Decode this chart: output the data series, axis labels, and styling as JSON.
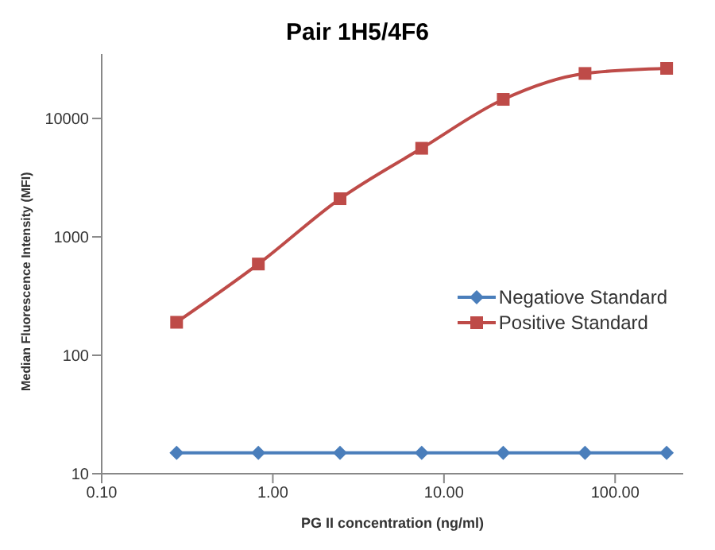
{
  "chart_data": {
    "type": "line",
    "title": "Pair 1H5/4F6",
    "xlabel": "PG II concentration (ng/ml)",
    "ylabel": "Median Fluorescence Intensity (MFI)",
    "x": [
      0.274,
      0.823,
      2.47,
      7.41,
      22.2,
      66.7,
      200
    ],
    "series": [
      {
        "name": "Negatiove Standard",
        "color": "#4a7ebb",
        "marker": "diamond",
        "values": [
          15,
          15,
          15,
          15,
          15,
          15,
          15
        ]
      },
      {
        "name": "Positive Standard",
        "color": "#be4b48",
        "marker": "square",
        "values": [
          190,
          590,
          2100,
          5600,
          14500,
          24000,
          26500
        ]
      }
    ],
    "log": "xy",
    "xlim": [
      0.1,
      250
    ],
    "ylim": [
      10,
      35000
    ],
    "xticks": [
      {
        "value": 0.1,
        "label": "0.10"
      },
      {
        "value": 1,
        "label": "1.00"
      },
      {
        "value": 10,
        "label": "10.00"
      },
      {
        "value": 100,
        "label": "100.00"
      }
    ],
    "yticks": [
      10,
      100,
      1000,
      10000
    ],
    "grid": false,
    "legend": "right"
  }
}
